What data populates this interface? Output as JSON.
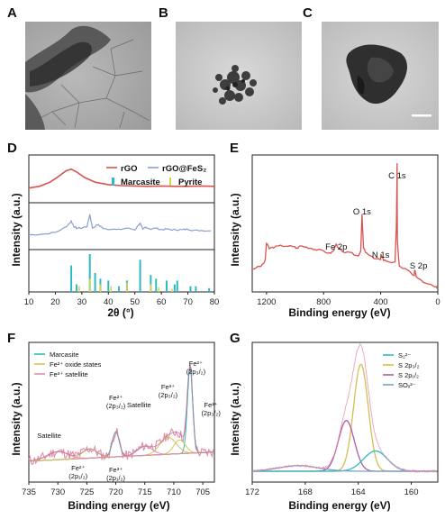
{
  "panels": {
    "A": "A",
    "B": "B",
    "C": "C",
    "D": "D",
    "E": "E",
    "F": "F",
    "G": "G"
  },
  "colors": {
    "rgo": "#d9534f",
    "composite": "#8c9fd0",
    "marcasite": "#2fb9c4",
    "pyrite": "#d9d24a",
    "fe2_oxide": "#d4c45a",
    "satellite": "#e58aa8",
    "s_s22": "#2fb9c4",
    "s_2p32": "#d6bd53",
    "s_2p12": "#b05aa8",
    "sox": "#7aa0c8"
  },
  "chart_data": [
    {
      "panel": "D",
      "type": "line",
      "xlabel": "2θ (°)",
      "ylabel": "Intensity (a.u.)",
      "xlim": [
        10,
        80
      ],
      "x_ticks": [
        "10",
        "20",
        "30",
        "40",
        "50",
        "60",
        "70",
        "80"
      ],
      "legend": [
        "rGO",
        "rGO@FeS₂",
        "Marcasite",
        "Pyrite"
      ],
      "series": [
        {
          "name": "rGO",
          "x": [
            10,
            14,
            18,
            21,
            24,
            26,
            28,
            31,
            35,
            40,
            45,
            50,
            55,
            60,
            65,
            70,
            75,
            80
          ],
          "y": [
            0.35,
            0.4,
            0.52,
            0.68,
            0.85,
            0.9,
            0.82,
            0.66,
            0.52,
            0.45,
            0.42,
            0.41,
            0.4,
            0.41,
            0.4,
            0.4,
            0.41,
            0.4
          ]
        },
        {
          "name": "rGO@FeS₂",
          "x": [
            10,
            15,
            20,
            24,
            26,
            27,
            28,
            30,
            32,
            33,
            34,
            36,
            37,
            38,
            40,
            44,
            47,
            50,
            52,
            53,
            54,
            56,
            58,
            60,
            62,
            64,
            66,
            68,
            70,
            72,
            75,
            80
          ],
          "y": [
            0.35,
            0.37,
            0.42,
            0.58,
            0.75,
            0.6,
            0.55,
            0.55,
            0.6,
            0.95,
            0.55,
            0.65,
            0.6,
            0.55,
            0.52,
            0.5,
            0.55,
            0.5,
            0.7,
            0.5,
            0.58,
            0.52,
            0.55,
            0.5,
            0.52,
            0.5,
            0.5,
            0.5,
            0.52,
            0.48,
            0.48,
            0.47
          ]
        },
        {
          "name": "Marcasite",
          "x": [
            26,
            28,
            33,
            35,
            37,
            40,
            44,
            47,
            52,
            56,
            58,
            62,
            65,
            66,
            71,
            73,
            78
          ],
          "y": [
            0.7,
            0.2,
            1.0,
            0.5,
            0.35,
            0.3,
            0.15,
            0.3,
            0.85,
            0.45,
            0.35,
            0.3,
            0.2,
            0.3,
            0.15,
            0.15,
            0.1
          ]
        },
        {
          "name": "Pyrite",
          "x": [
            29,
            33,
            37,
            41,
            47,
            56,
            59,
            64
          ],
          "y": [
            0.15,
            0.35,
            0.2,
            0.15,
            0.25,
            0.2,
            0.12,
            0.08
          ]
        }
      ]
    },
    {
      "panel": "E",
      "type": "line",
      "xlabel": "Binding energy (eV)",
      "ylabel": "Intensity (a.u.)",
      "xlim": [
        1300,
        0
      ],
      "x_ticks": [
        "1200",
        "800",
        "400",
        "0"
      ],
      "annotations": [
        "C 1s",
        "O 1s",
        "Fe 2p",
        "N 1s",
        "S 2p"
      ],
      "series": [
        {
          "name": "survey",
          "x": [
            1300,
            1240,
            1210,
            1200,
            1180,
            1150,
            1100,
            1050,
            1000,
            990,
            960,
            920,
            880,
            850,
            800,
            760,
            730,
            720,
            710,
            700,
            650,
            600,
            560,
            540,
            531,
            520,
            500,
            460,
            420,
            400,
            399,
            380,
            350,
            300,
            290,
            285,
            283,
            270,
            230,
            200,
            165,
            162,
            150,
            120,
            100,
            50,
            10,
            0
          ],
          "y": [
            0.18,
            0.2,
            0.24,
            0.38,
            0.34,
            0.35,
            0.36,
            0.36,
            0.35,
            0.34,
            0.36,
            0.35,
            0.34,
            0.33,
            0.32,
            0.3,
            0.32,
            0.36,
            0.37,
            0.34,
            0.31,
            0.3,
            0.28,
            0.32,
            0.6,
            0.34,
            0.3,
            0.27,
            0.26,
            0.25,
            0.3,
            0.25,
            0.24,
            0.23,
            0.5,
            1.0,
            0.4,
            0.2,
            0.18,
            0.16,
            0.12,
            0.18,
            0.12,
            0.1,
            0.08,
            0.06,
            0.04,
            0.03
          ]
        }
      ]
    },
    {
      "panel": "F",
      "type": "line",
      "xlabel": "Binding energy (eV)",
      "ylabel": "Intensity (a.u.)",
      "xlim": [
        735,
        703
      ],
      "x_ticks": [
        "735",
        "730",
        "725",
        "720",
        "715",
        "710",
        "705"
      ],
      "legend": [
        "Marcasite",
        "Fe²⁺ oxide states",
        "Fe³⁺ satellite"
      ],
      "annotations": [
        "Fe²⁺ (2p₁/₂)",
        "Fe³⁺ (2p₁/₂)",
        "Satellite",
        "Fe³⁺ (2p₃/₂)",
        "Fe²⁺ (2p₃/₂)",
        "Fe²⁺ (2p₃/₂)",
        "Fe³⁺ (2p₃/₂)",
        "Satellite",
        "Fe²⁺ (2p₁/₂)"
      ]
    },
    {
      "panel": "G",
      "type": "line",
      "xlabel": "Binding energy (eV)",
      "ylabel": "Intensity (a.u.)",
      "xlim": [
        172,
        158
      ],
      "x_ticks": [
        "172",
        "168",
        "164",
        "160"
      ],
      "legend": [
        "S₂²⁻",
        "S 2p₃/₂",
        "S 2p₁/₂",
        "SOₓ²⁻"
      ],
      "series": [
        {
          "name": "S 2p₃/₂",
          "center": 163.8,
          "height": 0.95,
          "width": 0.55
        },
        {
          "name": "S 2p₁/₂",
          "center": 164.9,
          "height": 0.45,
          "width": 0.6
        },
        {
          "name": "S₂²⁻",
          "center": 162.7,
          "height": 0.18,
          "width": 0.9
        },
        {
          "name": "SOₓ²⁻",
          "center": 168.5,
          "height": 0.05,
          "width": 1.5
        }
      ]
    }
  ]
}
